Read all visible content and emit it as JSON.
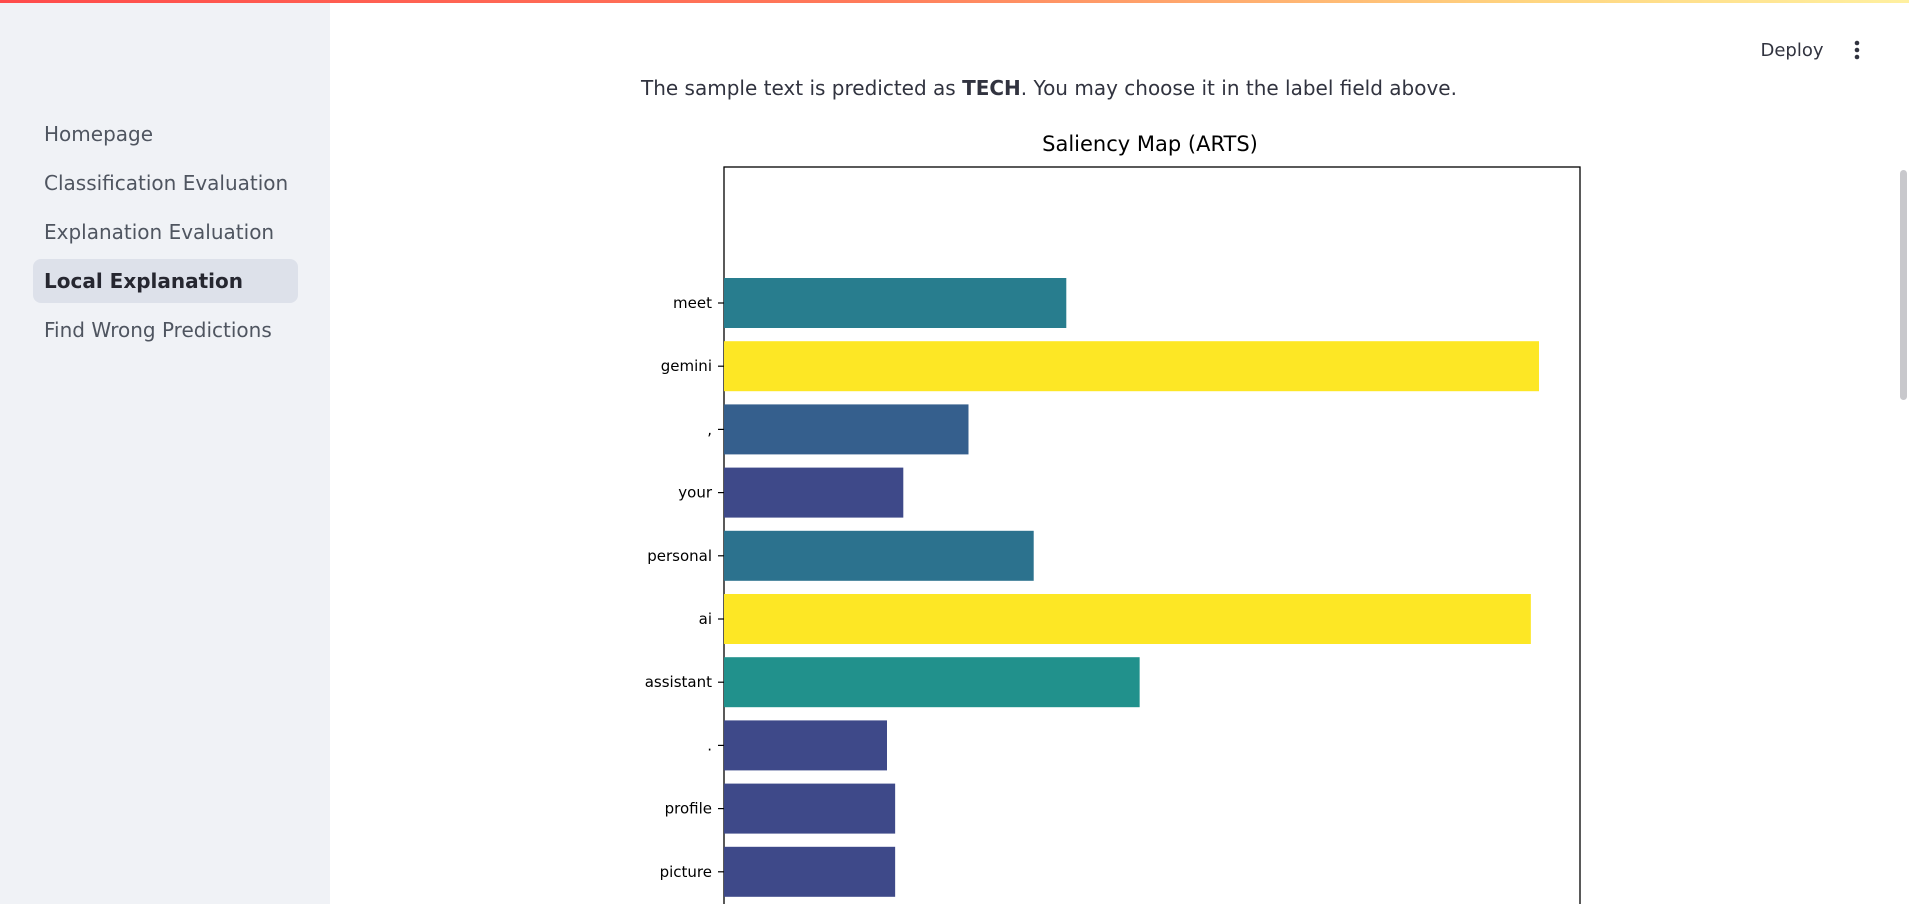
{
  "sidebar": {
    "items": [
      {
        "label": "Homepage",
        "active": false
      },
      {
        "label": "Classification Evaluation",
        "active": false
      },
      {
        "label": "Explanation Evaluation",
        "active": false
      },
      {
        "label": "Local Explanation",
        "active": true
      },
      {
        "label": "Find Wrong Predictions",
        "active": false
      }
    ]
  },
  "header": {
    "deploy_label": "Deploy",
    "menu_icon": "kebab-menu-icon"
  },
  "caption": {
    "prefix": "The sample text is predicted as ",
    "label": "TECH",
    "suffix": ". You may choose it in the label field above."
  },
  "chart_data": {
    "type": "bar",
    "orientation": "horizontal",
    "title": "Saliency Map (ARTS)",
    "xlabel": "",
    "ylabel": "",
    "grid": false,
    "categories": [
      "meet",
      "gemini",
      ",",
      "your",
      "personal",
      "ai",
      "assistant",
      ".",
      "profile",
      "picture"
    ],
    "values": [
      0.42,
      1.0,
      0.3,
      0.22,
      0.38,
      0.99,
      0.51,
      0.2,
      0.21,
      0.21
    ],
    "colors": [
      "#287d8e",
      "#fde725",
      "#355f8d",
      "#3e4989",
      "#2c728e",
      "#fde725",
      "#21918c",
      "#3e4989",
      "#3e4989",
      "#3e4989"
    ]
  }
}
